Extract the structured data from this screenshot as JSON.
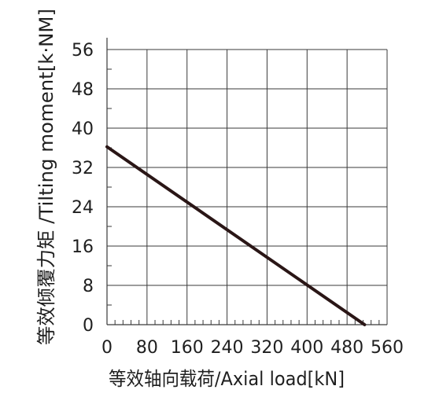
{
  "chart_data": {
    "type": "line",
    "title": "",
    "xlabel": "等效轴向载荷/Axial load[kN]",
    "ylabel": "等效倾覆力矩 /Tilting moment[k·NM]",
    "x_ticks": [
      "0",
      "80",
      "160",
      "240",
      "320",
      "400",
      "480",
      "560"
    ],
    "y_ticks": [
      "0",
      "8",
      "16",
      "24",
      "32",
      "40",
      "48",
      "56"
    ],
    "xlim": [
      0,
      560
    ],
    "ylim": [
      0,
      56
    ],
    "grid": true,
    "legend": "none",
    "series": [
      {
        "points": [
          {
            "x": 0,
            "y": 36.2
          },
          {
            "x": 515,
            "y": 0
          }
        ]
      }
    ],
    "colors": {
      "line": "#2a1616",
      "grid": "#3a3a3a",
      "text": "#1f1f1f",
      "background": "#ffffff"
    }
  }
}
